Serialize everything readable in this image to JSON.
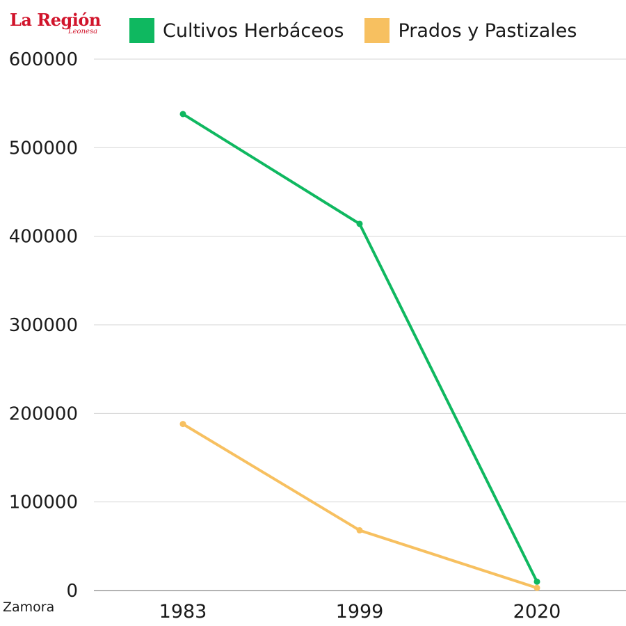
{
  "logo": {
    "main_text": "La Región",
    "sub_text": "Leonesa"
  },
  "footer": {
    "region_label": "Zamora"
  },
  "chart_data": {
    "type": "line",
    "categories": [
      "1983",
      "1999",
      "2020"
    ],
    "series": [
      {
        "name": "Cultivos Herbáceos",
        "color": "#0fb860",
        "values": [
          538000,
          414000,
          10000
        ]
      },
      {
        "name": "Prados y Pastizales",
        "color": "#f7c060",
        "values": [
          188000,
          68000,
          3000
        ]
      }
    ],
    "ylim": [
      0,
      600000
    ],
    "yticks": [
      "0",
      "100000",
      "200000",
      "300000",
      "400000",
      "500000",
      "600000"
    ],
    "grid": true,
    "legend_position": "top"
  }
}
